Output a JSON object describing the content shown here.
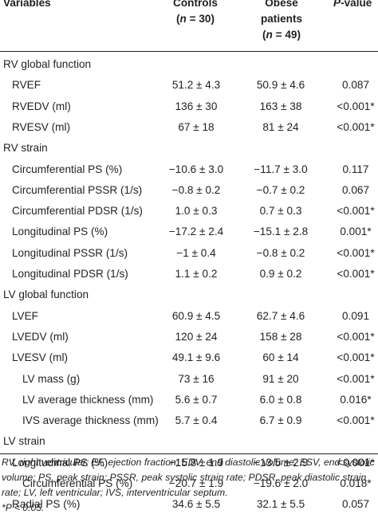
{
  "header": {
    "variables": "Variables",
    "controls_line1": "Controls",
    "controls_line2": "(n = 30)",
    "controls_n_prefix": "(",
    "controls_n_italic": "n",
    "controls_n_suffix": " = 30)",
    "obese_line1": "Obese",
    "obese_line2": "patients",
    "obese_n_prefix": "(",
    "obese_n_italic": "n",
    "obese_n_suffix": " = 49)",
    "p_italic": "P",
    "p_suffix": "-value"
  },
  "rows": [
    {
      "label": "RV global function",
      "controls": "",
      "obese": "",
      "p": ""
    },
    {
      "label": "RVEF",
      "controls": "51.2 ± 4.3",
      "obese": "50.9 ± 4.6",
      "p": "0.087"
    },
    {
      "label": "RVEDV (ml)",
      "controls": "136 ± 30",
      "obese": "163 ± 38",
      "p": "<0.001*"
    },
    {
      "label": "RVESV (ml)",
      "controls": "67 ± 18",
      "obese": "81 ± 24",
      "p": "<0.001*"
    },
    {
      "label": "RV strain",
      "controls": "",
      "obese": "",
      "p": ""
    },
    {
      "label": "Circumferential PS (%)",
      "controls": "−10.6 ± 3.0",
      "obese": "−11.7 ± 3.0",
      "p": "0.117"
    },
    {
      "label": "Circumferential PSSR (1/s)",
      "controls": "−0.8 ± 0.2",
      "obese": "−0.7 ± 0.2",
      "p": "0.067"
    },
    {
      "label": "Circumferential PDSR (1/s)",
      "controls": "1.0 ± 0.3",
      "obese": "0.7 ± 0.3",
      "p": "<0.001*"
    },
    {
      "label": "Longitudinal PS (%)",
      "controls": "−17.2 ± 2.4",
      "obese": "−15.1 ± 2.8",
      "p": "0.001*"
    },
    {
      "label": "Longitudinal PSSR (1/s)",
      "controls": "−1 ± 0.4",
      "obese": "−0.8 ± 0.2",
      "p": "<0.001*"
    },
    {
      "label": "Longitudinal PDSR (1/s)",
      "controls": "1.1 ± 0.2",
      "obese": "0.9 ± 0.2",
      "p": "<0.001*"
    },
    {
      "label": "LV global function",
      "controls": "",
      "obese": "",
      "p": ""
    },
    {
      "label": "LVEF",
      "controls": "60.9 ± 4.5",
      "obese": "62.7 ± 4.6",
      "p": "0.091"
    },
    {
      "label": "LVEDV (ml)",
      "controls": "120 ± 24",
      "obese": "158 ± 28",
      "p": "<0.001*"
    },
    {
      "label": "LVESV (ml)",
      "controls": "49.1 ± 9.6",
      "obese": "60 ± 14",
      "p": "<0.001*"
    },
    {
      "label": "LV mass (g)",
      "controls": "73 ± 16",
      "obese": "91 ± 20",
      "p": "<0.001*"
    },
    {
      "label": "LV average thickness (mm)",
      "controls": "5.6 ± 0.7",
      "obese": "6.0 ± 0.8",
      "p": "0.016*"
    },
    {
      "label": "IVS average thickness (mm)",
      "controls": "5.7 ± 0.4",
      "obese": "6.7 ± 0.9",
      "p": "<0.001*"
    },
    {
      "label": "LV strain",
      "controls": "",
      "obese": "",
      "p": ""
    },
    {
      "label": "Longitudinal PS (%)",
      "controls": "−15.8 ± 1.9",
      "obese": "−13.5 ± 2.9",
      "p": "<0.001*"
    },
    {
      "label": "Circumferential PS (%)",
      "controls": "−20.7 ± 1.9",
      "obese": "−19.6 ± 2.0",
      "p": "0.018*"
    },
    {
      "label": "Radial PS (%)",
      "controls": "34.6 ± 5.5",
      "obese": "32.1 ± 5.5",
      "p": "0.057"
    }
  ],
  "footnote": "RV, right ventricular; EF, ejection fraction; EDV, end diastolic volume; ESV, end systolic volume; PS, peak strain; PSSR, peak systolic strain rate; PDSR, peak diastolic strain rate; LV, left ventricular; IVS, interventricular septum.",
  "significance_note": "*P < 0.05."
}
